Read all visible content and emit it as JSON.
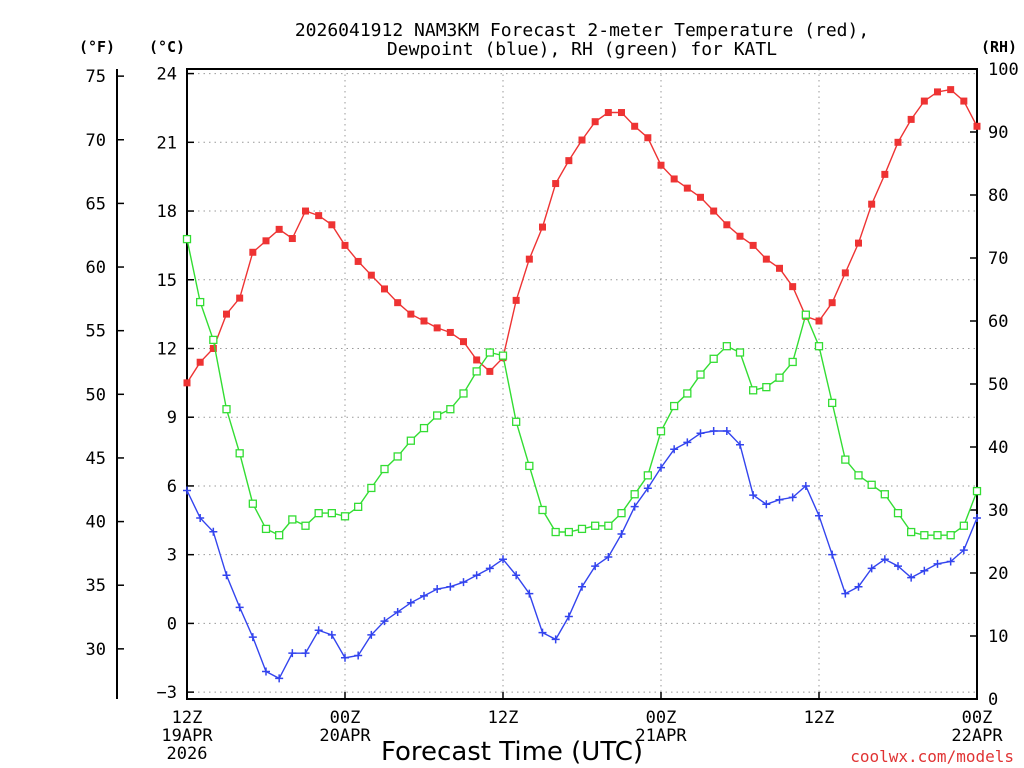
{
  "chart_data": {
    "type": "line",
    "title_line1": "2026041912 NAM3KM Forecast 2-meter Temperature (red),",
    "title_line2": "Dewpoint (blue), RH (green) for KATL",
    "xlabel": "Forecast Time (UTC)",
    "credit": "coolwx.com/models",
    "units": {
      "fahrenheit": "(°F)",
      "celsius": "(°C)",
      "rh": "(RH)"
    },
    "x_range_hours": [
      0,
      60
    ],
    "x_ticks": [
      {
        "hour": 0,
        "lines": [
          "12Z",
          "19APR",
          "2026"
        ]
      },
      {
        "hour": 12,
        "lines": [
          "00Z",
          "20APR"
        ]
      },
      {
        "hour": 24,
        "lines": [
          "12Z"
        ]
      },
      {
        "hour": 36,
        "lines": [
          "00Z",
          "21APR"
        ]
      },
      {
        "hour": 48,
        "lines": [
          "12Z"
        ]
      },
      {
        "hour": 60,
        "lines": [
          "00Z",
          "22APR"
        ]
      }
    ],
    "y_celsius": {
      "range": [
        -3.3,
        24.2
      ],
      "ticks": [
        "−3",
        "0",
        "3",
        "6",
        "9",
        "12",
        "15",
        "18",
        "21",
        "24"
      ],
      "tick_values": [
        -3,
        0,
        3,
        6,
        9,
        12,
        15,
        18,
        21,
        24
      ]
    },
    "y_fahrenheit": {
      "ticks": [
        "30",
        "35",
        "40",
        "45",
        "50",
        "55",
        "60",
        "65",
        "70",
        "75"
      ],
      "tick_values": [
        30,
        35,
        40,
        45,
        50,
        55,
        60,
        65,
        70,
        75
      ]
    },
    "y_rh": {
      "range": [
        0,
        100
      ],
      "ticks": [
        "0",
        "10",
        "20",
        "30",
        "40",
        "50",
        "60",
        "70",
        "80",
        "90",
        "100"
      ],
      "tick_values": [
        0,
        10,
        20,
        30,
        40,
        50,
        60,
        70,
        80,
        90,
        100
      ]
    },
    "grid": true,
    "series": [
      {
        "name": "Temperature",
        "unit": "C",
        "color": "#ee3333",
        "marker": "filled-square",
        "values": [
          10.5,
          11.4,
          12.0,
          13.5,
          14.2,
          16.2,
          16.7,
          17.2,
          16.8,
          18.0,
          17.8,
          17.4,
          16.5,
          15.8,
          15.2,
          14.6,
          14.0,
          13.5,
          13.2,
          12.9,
          12.7,
          12.3,
          11.5,
          11.0,
          11.6,
          14.1,
          15.9,
          17.3,
          19.2,
          20.2,
          21.1,
          21.9,
          22.3,
          22.3,
          21.7,
          21.2,
          20.0,
          19.4,
          19.0,
          18.6,
          18.0,
          17.4,
          16.9,
          16.5,
          15.9,
          15.5,
          14.7,
          13.4,
          13.2,
          14.0,
          15.3,
          16.6,
          18.3,
          19.6,
          21.0,
          22.0,
          22.8,
          23.2,
          23.3,
          22.8,
          21.7
        ]
      },
      {
        "name": "Dewpoint",
        "unit": "C",
        "color": "#3344ee",
        "marker": "plus",
        "values": [
          5.8,
          4.6,
          4.0,
          2.1,
          0.7,
          -0.6,
          -2.1,
          -2.4,
          -1.3,
          -1.3,
          -0.3,
          -0.5,
          -1.5,
          -1.4,
          -0.5,
          0.1,
          0.5,
          0.9,
          1.2,
          1.5,
          1.6,
          1.8,
          2.1,
          2.4,
          2.8,
          2.1,
          1.3,
          -0.4,
          -0.7,
          0.3,
          1.6,
          2.5,
          2.9,
          3.9,
          5.1,
          5.9,
          6.8,
          7.6,
          7.9,
          8.3,
          8.4,
          8.4,
          7.8,
          5.6,
          5.2,
          5.4,
          5.5,
          6.0,
          4.7,
          3.0,
          1.3,
          1.6,
          2.4,
          2.8,
          2.5,
          2.0,
          2.3,
          2.6,
          2.7,
          3.2,
          4.6
        ]
      },
      {
        "name": "RH",
        "unit": "%",
        "color": "#33dd33",
        "marker": "open-square",
        "values": [
          73,
          63,
          57,
          46,
          39,
          31,
          27,
          26,
          28.5,
          27.5,
          29.5,
          29.5,
          29,
          30.5,
          33.5,
          36.5,
          38.5,
          41,
          43,
          45,
          46,
          48.5,
          52,
          55,
          54.5,
          44,
          37,
          30,
          26.5,
          26.5,
          27,
          27.5,
          27.5,
          29.5,
          32.5,
          35.5,
          42.5,
          46.5,
          48.5,
          51.5,
          54,
          56,
          55,
          49,
          49.5,
          51,
          53.5,
          61,
          56,
          47,
          38,
          35.5,
          34,
          32.5,
          29.5,
          26.5,
          26,
          26,
          26,
          27.5,
          33
        ]
      }
    ]
  }
}
